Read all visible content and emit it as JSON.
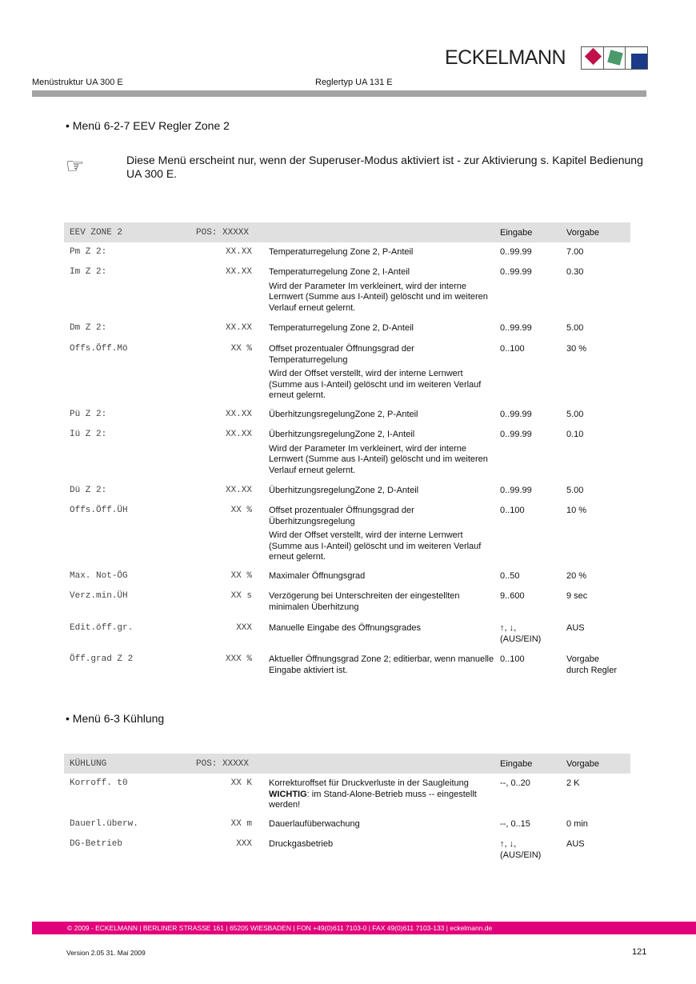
{
  "header": {
    "left": "Menüstruktur UA 300 E",
    "center": "Reglertyp UA 131 E",
    "logo": "ECKELMANN"
  },
  "colors": {
    "brand_pink": "#e2007a",
    "logo_red": "#c0104a",
    "logo_green": "#4a9a6a",
    "logo_blue": "#1a3a8a"
  },
  "section1": {
    "bullet": "•",
    "title": "Menü 6-2-7 EEV Regler Zone 2"
  },
  "note": {
    "icon": "pointing-hand-icon",
    "text": "Diese Menü erscheint nur, wenn der Superuser-Modus aktiviert ist - zur Aktivierung s. Kapitel Bedienung UA 300 E."
  },
  "table1": {
    "header": {
      "name": "EEV ZONE 2",
      "pos": "POS: XXXXX",
      "eingabe": "Eingabe",
      "vorgabe": "Vorgabe"
    },
    "rows": [
      {
        "name": "Pm Z 2:",
        "value": "XX.XX",
        "desc": [
          "Temperaturregelung Zone 2, P-Anteil"
        ],
        "eingabe": "0..99.99",
        "vorgabe": "7.00"
      },
      {
        "name": "Im Z 2:",
        "value": "XX.XX",
        "desc": [
          "Temperaturregelung Zone 2, I-Anteil",
          "Wird der Parameter Im verkleinert, wird der interne Lernwert (Summe aus I-Anteil) gelöscht und im weiteren Verlauf erneut gelernt."
        ],
        "eingabe": "0..99.99",
        "vorgabe": "0.30"
      },
      {
        "name": "Dm Z 2:",
        "value": "XX.XX",
        "desc": [
          "Temperaturregelung Zone 2, D-Anteil"
        ],
        "eingabe": "0..99.99",
        "vorgabe": "5.00"
      },
      {
        "name": "Offs.Öff.Mö",
        "value": "XX %",
        "desc": [
          "Offset prozentualer Öffnungsgrad der Temperaturregelung",
          "Wird der Offset verstellt, wird der interne Lernwert (Summe aus I-Anteil) gelöscht und im weiteren Verlauf erneut gelernt."
        ],
        "eingabe": "0..100",
        "vorgabe": "30 %"
      },
      {
        "name": "Pü Z 2:",
        "value": "XX.XX",
        "desc": [
          "ÜberhitzungsregelungZone 2, P-Anteil"
        ],
        "eingabe": "0..99.99",
        "vorgabe": "5.00"
      },
      {
        "name": "Iü Z 2:",
        "value": "XX.XX",
        "desc": [
          "ÜberhitzungsregelungZone 2, I-Anteil",
          "Wird der Parameter Im verkleinert, wird der interne Lernwert (Summe aus I-Anteil) gelöscht und im weiteren Verlauf erneut gelernt."
        ],
        "eingabe": "0..99.99",
        "vorgabe": "0.10"
      },
      {
        "name": "Dü Z 2:",
        "value": "XX.XX",
        "desc": [
          "ÜberhitzungsregelungZone 2, D-Anteil"
        ],
        "eingabe": "0..99.99",
        "vorgabe": "5.00"
      },
      {
        "name": "Offs.Öff.ÜH",
        "value": "XX %",
        "desc": [
          "Offset prozentualer Öffnungsgrad der Überhitzungsregelung",
          "Wird der Offset verstellt, wird der interne Lernwert (Summe aus I-Anteil) gelöscht und im weiteren Verlauf erneut gelernt."
        ],
        "eingabe": "0..100",
        "vorgabe": "10 %"
      },
      {
        "name": "Max. Not-ÖG",
        "value": "XX %",
        "desc": [
          "Maximaler Öffnungsgrad"
        ],
        "eingabe": "0..50",
        "vorgabe": "20 %"
      },
      {
        "name": "Verz.min.ÜH",
        "value": "XX s",
        "desc": [
          "Verzögerung bei Unterschreiten der eingestellten minimalen Überhitzung"
        ],
        "eingabe": "9..600",
        "vorgabe": "9 sec"
      },
      {
        "name": "Edit.öff.gr.",
        "value": "XXX",
        "desc": [
          "Manuelle Eingabe des Öffnungsgrades"
        ],
        "eingabe": "↑, ↓,\n(AUS/EIN)",
        "vorgabe": "AUS"
      },
      {
        "name": "Öff.grad Z 2",
        "value": "XXX %",
        "desc": [
          "Aktueller Öffnungsgrad Zone 2; editierbar, wenn manuelle Eingabe aktiviert ist."
        ],
        "eingabe": "0..100",
        "vorgabe": "Vorgabe\ndurch Regler"
      }
    ]
  },
  "section2": {
    "bullet": "•",
    "title": "Menü 6-3 Kühlung"
  },
  "table2": {
    "header": {
      "name": "KÜHLUNG",
      "pos": "POS: XXXXX",
      "eingabe": "Eingabe",
      "vorgabe": "Vorgabe"
    },
    "rows": [
      {
        "name": "Korroff. t0",
        "value": "XX K",
        "desc": [
          "Korrekturoffset für Druckverluste in der Saugleitung"
        ],
        "desc_bold": "WICHTIG",
        "desc_after_bold": ": im Stand-Alone-Betrieb muss -- eingestellt werden!",
        "eingabe": "--, 0..20",
        "vorgabe": "2 K"
      },
      {
        "name": "Dauerl.überw.",
        "value": "XX m",
        "desc": [
          "Dauerlaufüberwachung"
        ],
        "eingabe": "--, 0..15",
        "vorgabe": "0 min"
      },
      {
        "name": "DG-Betrieb",
        "value": "XXX",
        "desc": [
          "Druckgasbetrieb"
        ],
        "eingabe": "↑, ↓,\n(AUS/EIN)",
        "vorgabe": "AUS"
      }
    ]
  },
  "footer": {
    "address": "© 2009 - ECKELMANN | BERLINER STRASSE 161 | 65205 WIESBADEN | FON +49(0)611 7103-0 | FAX 49(0)611 7103-133 | eckelmann.de",
    "version": "Version 2.05   31. Mai 2009",
    "page": "121"
  }
}
